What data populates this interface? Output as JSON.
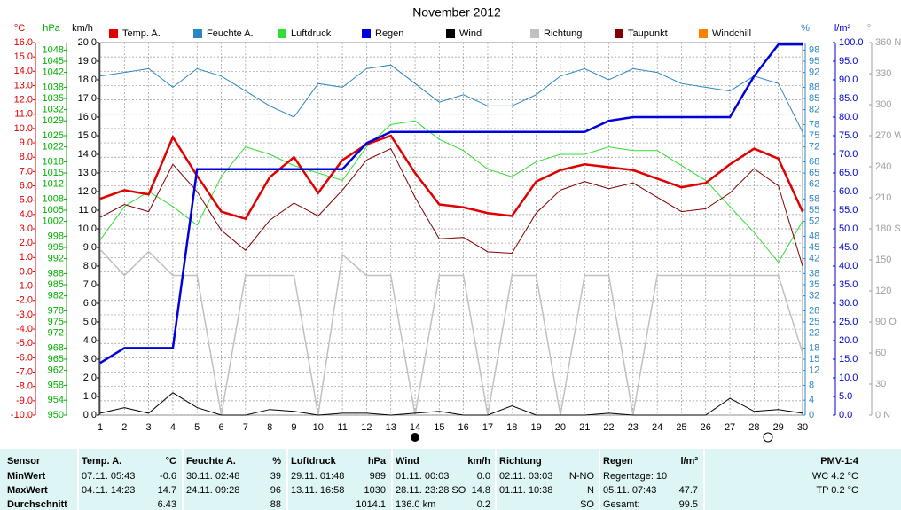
{
  "chart_data": {
    "type": "line",
    "title": "November 2012",
    "x": [
      1,
      2,
      3,
      4,
      5,
      6,
      7,
      8,
      9,
      10,
      11,
      12,
      13,
      14,
      15,
      16,
      17,
      18,
      19,
      20,
      21,
      22,
      23,
      24,
      25,
      26,
      27,
      28,
      29,
      30
    ],
    "xlim": [
      1,
      30
    ],
    "xticks": [
      1,
      2,
      3,
      4,
      5,
      6,
      7,
      8,
      9,
      10,
      11,
      12,
      13,
      14,
      15,
      16,
      17,
      18,
      19,
      20,
      21,
      22,
      23,
      24,
      25,
      26,
      27,
      28,
      29,
      30
    ],
    "grid": true,
    "axes": {
      "temp": {
        "unit": "°C",
        "lim": [
          -10,
          16
        ],
        "ticks": [
          {
            "value": 16,
            "label": "16.0"
          },
          {
            "value": 15,
            "label": "15.0"
          },
          {
            "value": 14,
            "label": "14.0"
          },
          {
            "value": 13,
            "label": "13.0"
          },
          {
            "value": 12,
            "label": "12.0"
          },
          {
            "value": 11,
            "label": "11.0"
          },
          {
            "value": 10,
            "label": "10.0"
          },
          {
            "value": 9,
            "label": "9.0"
          },
          {
            "value": 8,
            "label": "8.0"
          },
          {
            "value": 7,
            "label": "7.0"
          },
          {
            "value": 6,
            "label": "6.0"
          },
          {
            "value": 5,
            "label": "5.0"
          },
          {
            "value": 4,
            "label": "4.0"
          },
          {
            "value": 3,
            "label": "3.0"
          },
          {
            "value": 2,
            "label": "2.0"
          },
          {
            "value": 1,
            "label": "1.0"
          },
          {
            "value": 0,
            "label": "0.0"
          },
          {
            "value": -1,
            "label": "-1.0"
          },
          {
            "value": -2,
            "label": "-2.0"
          },
          {
            "value": -3,
            "label": "-3.0"
          },
          {
            "value": -4,
            "label": "-4.0"
          },
          {
            "value": -5,
            "label": "-5.0"
          },
          {
            "value": -6,
            "label": "-6.0"
          },
          {
            "value": -7,
            "label": "-7.0"
          },
          {
            "value": -8,
            "label": "-8.0"
          },
          {
            "value": -9,
            "label": "-9.0"
          },
          {
            "value": -10,
            "label": "-10.0"
          }
        ]
      },
      "hpa": {
        "unit": "hPa",
        "lim": [
          950,
          1050
        ],
        "ticks": [
          1048,
          1045,
          1042,
          1038,
          1035,
          1032,
          1029,
          1025,
          1022,
          1018,
          1015,
          1012,
          1008,
          1005,
          1002,
          998,
          995,
          992,
          988,
          985,
          982,
          978,
          975,
          972,
          968,
          965,
          962,
          958,
          954,
          950
        ]
      },
      "kmh": {
        "unit": "km/h",
        "lim": [
          0,
          20
        ],
        "ticks": [
          {
            "value": 20,
            "label": "20.0"
          },
          {
            "value": 19,
            "label": "19.0"
          },
          {
            "value": 18,
            "label": "18.0"
          },
          {
            "value": 17,
            "label": "17.0"
          },
          {
            "value": 16,
            "label": "16.0"
          },
          {
            "value": 15,
            "label": "15.0"
          },
          {
            "value": 14,
            "label": "14.0"
          },
          {
            "value": 13,
            "label": "13.0"
          },
          {
            "value": 12,
            "label": "12.0"
          },
          {
            "value": 11,
            "label": "11.0"
          },
          {
            "value": 10,
            "label": "10.0"
          },
          {
            "value": 9,
            "label": "9.0"
          },
          {
            "value": 8,
            "label": "8.0"
          },
          {
            "value": 7,
            "label": "7.0"
          },
          {
            "value": 6,
            "label": "6.0"
          },
          {
            "value": 5,
            "label": "5.0"
          },
          {
            "value": 4,
            "label": "4.0"
          },
          {
            "value": 3,
            "label": "3.0"
          },
          {
            "value": 2,
            "label": "2.0"
          },
          {
            "value": 1,
            "label": "1.0"
          },
          {
            "value": 0,
            "label": "0.0"
          }
        ]
      },
      "pct": {
        "unit": "%",
        "lim": [
          0,
          100
        ],
        "ticks": [
          98,
          95,
          92,
          88,
          85,
          82,
          78,
          75,
          72,
          68,
          65,
          62,
          58,
          55,
          52,
          48,
          45,
          42,
          38,
          35,
          32,
          28,
          25,
          22,
          18,
          15,
          12,
          8,
          4,
          0
        ]
      },
      "rain": {
        "unit": "l/m²",
        "lim": [
          0,
          100
        ],
        "ticks": [
          {
            "value": 100,
            "label": "100.0"
          },
          {
            "value": 95,
            "label": "95.0"
          },
          {
            "value": 90,
            "label": "90.0"
          },
          {
            "value": 85,
            "label": "85.0"
          },
          {
            "value": 80,
            "label": "80.0"
          },
          {
            "value": 75,
            "label": "75.0"
          },
          {
            "value": 70,
            "label": "70.0"
          },
          {
            "value": 65,
            "label": "65.0"
          },
          {
            "value": 60,
            "label": "60.0"
          },
          {
            "value": 55,
            "label": "55.0"
          },
          {
            "value": 50,
            "label": "50.0"
          },
          {
            "value": 45,
            "label": "45.0"
          },
          {
            "value": 40,
            "label": "40.0"
          },
          {
            "value": 35,
            "label": "35.0"
          },
          {
            "value": 30,
            "label": "30.0"
          },
          {
            "value": 25,
            "label": "25.0"
          },
          {
            "value": 20,
            "label": "20.0"
          },
          {
            "value": 15,
            "label": "15.0"
          },
          {
            "value": 10,
            "label": "10.0"
          },
          {
            "value": 5,
            "label": "5.0"
          },
          {
            "value": 0,
            "label": "0.0"
          }
        ]
      },
      "dir": {
        "unit": "°",
        "lim": [
          0,
          360
        ],
        "ticks": [
          {
            "value": 360,
            "label": "360 N"
          },
          330,
          300,
          {
            "value": 270,
            "label": "270 W"
          },
          240,
          210,
          {
            "value": 180,
            "label": "180 S"
          },
          150,
          120,
          {
            "value": 90,
            "label": "90 O"
          },
          60,
          30,
          {
            "value": 0,
            "label": "0 N"
          }
        ]
      }
    },
    "series": [
      {
        "name": "Temp. A.",
        "color": "#e00000",
        "axis": "temp",
        "values": [
          5.1,
          5.7,
          5.4,
          9.4,
          6.7,
          4.2,
          3.7,
          6.6,
          8.0,
          5.5,
          7.8,
          8.9,
          9.5,
          6.9,
          4.7,
          4.5,
          4.1,
          3.9,
          6.3,
          7.1,
          7.5,
          7.3,
          7.1,
          6.5,
          5.9,
          6.2,
          7.5,
          8.6,
          7.9,
          4.2
        ]
      },
      {
        "name": "Feuchte A.",
        "color": "#2a86c0",
        "axis": "pct",
        "values": [
          91,
          92,
          93,
          88,
          93,
          91,
          87,
          83,
          80,
          89,
          88,
          93,
          94,
          89,
          84,
          86,
          83,
          83,
          86,
          91,
          93,
          90,
          93,
          92,
          89,
          88,
          87,
          91,
          89,
          76
        ]
      },
      {
        "name": "Luftdruck",
        "color": "#33dd33",
        "axis": "hpa",
        "values": [
          997,
          1006,
          1010,
          1006,
          1001,
          1014,
          1022,
          1020,
          1017,
          1015,
          1013,
          1022,
          1028,
          1029,
          1024,
          1021,
          1016,
          1014,
          1018,
          1020,
          1020,
          1022,
          1021,
          1021,
          1017,
          1013,
          1006,
          999,
          991,
          1002
        ]
      },
      {
        "name": "Regen",
        "color": "#0000dd",
        "axis": "rain",
        "values": [
          14,
          18,
          18,
          18,
          66,
          66,
          66,
          66,
          66,
          66,
          66,
          73,
          76,
          76,
          76,
          76,
          76,
          76,
          76,
          76,
          76,
          79,
          80,
          80,
          80,
          80,
          80,
          91,
          99.5,
          99.5
        ]
      },
      {
        "name": "Wind",
        "color": "#000000",
        "axis": "kmh",
        "values": [
          0.1,
          0.4,
          0.1,
          1.2,
          0.4,
          0,
          0,
          0.3,
          0.2,
          0,
          0.1,
          0.1,
          0,
          0.1,
          0.2,
          0,
          0,
          0.5,
          0,
          0,
          0,
          0.1,
          0,
          0,
          0,
          0,
          0.9,
          0.2,
          0.3,
          0.1
        ]
      },
      {
        "name": "Richtung",
        "color": "#c0c0c0",
        "axis": "dir",
        "values": [
          160,
          135,
          158,
          135,
          135,
          0,
          135,
          135,
          135,
          0,
          155,
          135,
          135,
          0,
          135,
          135,
          0,
          135,
          135,
          0,
          135,
          135,
          0,
          135,
          135,
          135,
          135,
          135,
          135,
          60
        ]
      },
      {
        "name": "Taupunkt",
        "color": "#800000",
        "axis": "temp",
        "values": [
          3.8,
          4.7,
          4.2,
          7.5,
          5.6,
          2.9,
          1.5,
          3.6,
          4.8,
          3.9,
          5.7,
          7.8,
          8.6,
          5.2,
          2.3,
          2.4,
          1.4,
          1.3,
          4.1,
          5.7,
          6.3,
          5.8,
          6.2,
          5.2,
          4.2,
          4.4,
          5.5,
          7.2,
          6.0,
          0.4
        ]
      },
      {
        "name": "Windchill",
        "color": "#ff8000",
        "axis": "temp"
      }
    ]
  },
  "table": {
    "sensor": {
      "header": "Sensor",
      "rows": [
        "MinWert",
        "MaxWert",
        "Durchschnitt"
      ]
    },
    "sections": [
      {
        "header": "Temp. A.",
        "unit": "°C",
        "rows": [
          {
            "left": "07.11. 05:43",
            "right": "-0.6"
          },
          {
            "left": "04.11. 14:23",
            "right": "14.7"
          },
          {
            "right": "6.43"
          }
        ]
      },
      {
        "header": "Feuchte A.",
        "unit": "%",
        "rows": [
          {
            "left": "30.11. 02:48",
            "right": "39"
          },
          {
            "left": "24.11. 09:28",
            "right": "96"
          },
          {
            "right": "88"
          }
        ]
      },
      {
        "header": "Luftdruck",
        "unit": "hPa",
        "rows": [
          {
            "left": "29.11. 01:48",
            "right": "989"
          },
          {
            "left": "13.11. 16:58",
            "right": "1030"
          },
          {
            "right": "1014.1"
          }
        ]
      },
      {
        "header": "Wind",
        "unit": "km/h",
        "rows": [
          {
            "left": "01.11. 00:03",
            "right": "0.0"
          },
          {
            "left": "28.11. 23:28 SO",
            "right": "14.8"
          },
          {
            "left": "136.0 km",
            "right": "0.2"
          }
        ]
      },
      {
        "header": "Richtung",
        "rows": [
          {
            "left": "02.11. 03:03",
            "right": "N-NO"
          },
          {
            "left": "01.11. 10:38",
            "right": "N"
          },
          {
            "right": "SO"
          }
        ]
      },
      {
        "header": "Regen",
        "unit": "l/m²",
        "rows": [
          {
            "left": "Regentage: 10"
          },
          {
            "left": "05.11. 07:43",
            "right": "47.7"
          },
          {
            "left": "Gesamt:",
            "right": "99.5"
          }
        ]
      }
    ],
    "pmv": {
      "header": "PMV-1:4",
      "rows": [
        "WC 4.2 °C",
        "TP 0.2 °C"
      ]
    }
  }
}
